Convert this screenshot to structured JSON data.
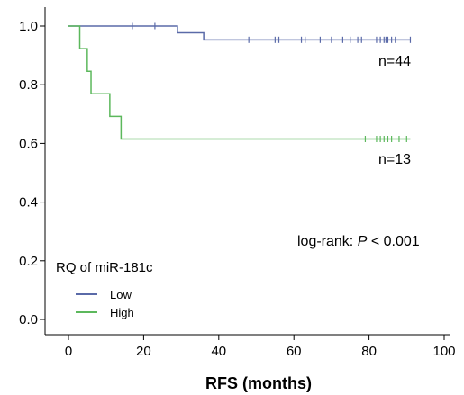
{
  "chart_data": {
    "type": "line",
    "subtype": "kaplan-meier",
    "title": "",
    "xlabel": "RFS (months)",
    "ylabel": "",
    "xlim": [
      0,
      100
    ],
    "ylim": [
      0,
      1.0
    ],
    "x_ticks": [
      0,
      20,
      40,
      60,
      80,
      100
    ],
    "y_ticks": [
      0.0,
      0.2,
      0.4,
      0.6,
      0.8,
      1.0
    ],
    "x_tick_labels": [
      "0",
      "20",
      "40",
      "60",
      "80",
      "100"
    ],
    "y_tick_labels": [
      "0.0",
      "0.2",
      "0.4",
      "0.6",
      "0.8",
      "1.0"
    ],
    "grid": false,
    "legend": {
      "title": "RQ of miR-181c",
      "position": "bottom-left"
    },
    "annotation": {
      "prefix": "log-rank: ",
      "italic": "P",
      "suffix": " < 0.001"
    },
    "series": [
      {
        "name": "Low",
        "color": "#5a6aa8",
        "n_label": "n=44",
        "steps": [
          [
            0,
            1.0
          ],
          [
            29,
            0.977
          ],
          [
            36,
            0.953
          ],
          [
            91,
            0.953
          ]
        ],
        "censored": [
          17,
          23,
          48,
          55,
          56,
          62,
          63,
          67,
          70,
          73,
          75,
          77,
          78,
          82,
          83,
          84,
          84.5,
          85,
          86,
          87,
          91
        ]
      },
      {
        "name": "High",
        "color": "#5cb85c",
        "n_label": "n=13",
        "steps": [
          [
            0,
            1.0
          ],
          [
            3,
            0.923
          ],
          [
            5,
            0.846
          ],
          [
            6,
            0.769
          ],
          [
            11,
            0.692
          ],
          [
            14,
            0.615
          ],
          [
            91,
            0.615
          ]
        ],
        "censored": [
          79,
          82,
          83,
          84,
          85,
          86,
          88,
          90
        ]
      }
    ]
  }
}
